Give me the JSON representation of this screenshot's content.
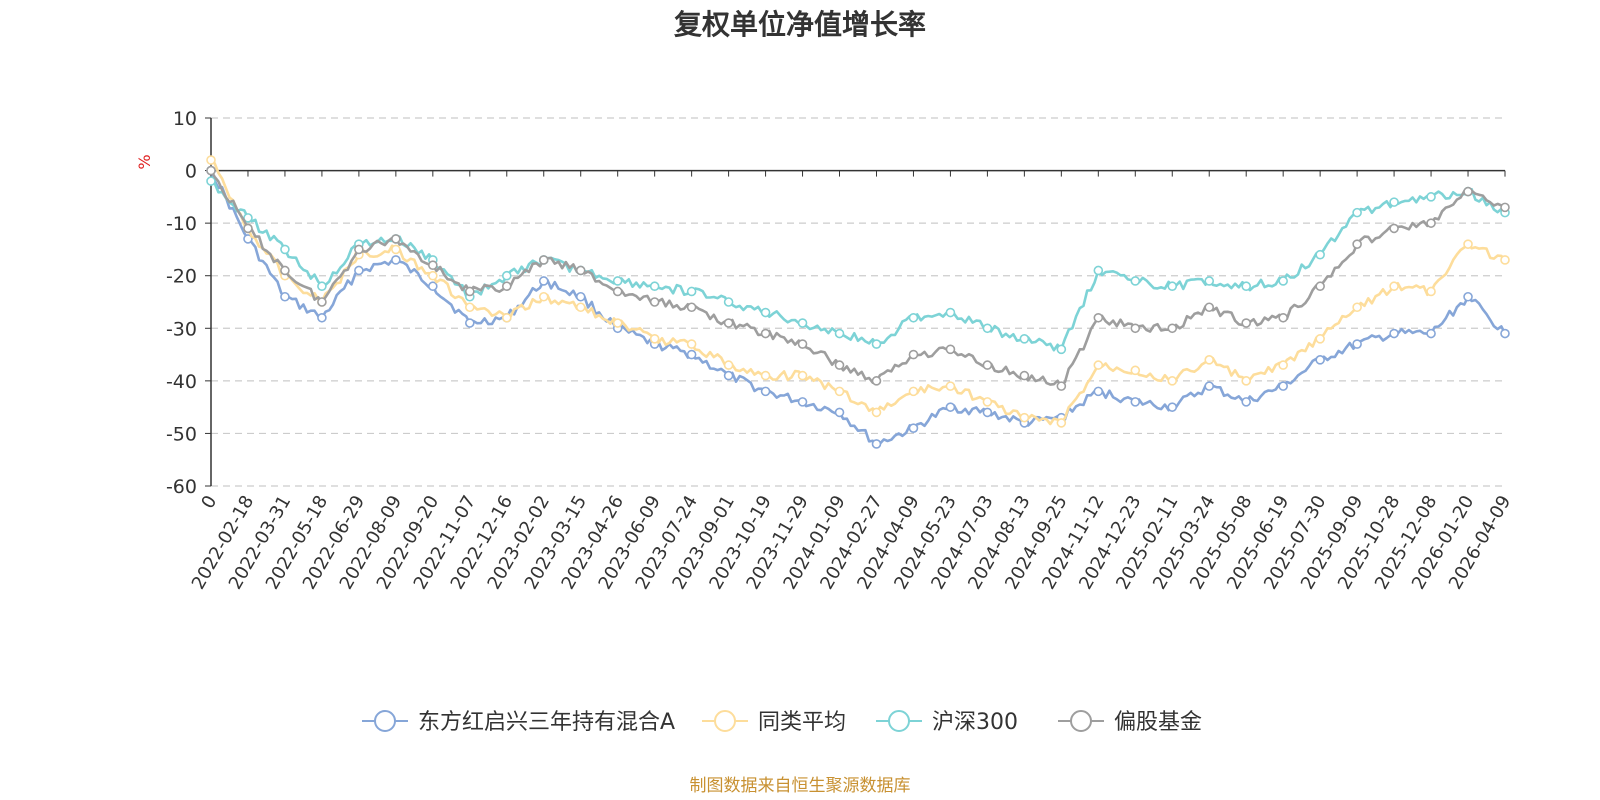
{
  "source_note": "制图数据来自恒生聚源数据库",
  "chart_data": {
    "type": "line",
    "title": "复权单位净值增长率",
    "ylabel": "%",
    "xlabel": "",
    "ylim": [
      -60,
      10
    ],
    "yticks": [
      10,
      0,
      -10,
      -20,
      -30,
      -40,
      -50,
      -60
    ],
    "grid": true,
    "legend_position": "bottom",
    "categories": [
      "0",
      "2022-02-18",
      "2022-03-31",
      "2022-05-18",
      "2022-06-29",
      "2022-08-09",
      "2022-09-20",
      "2022-11-07",
      "2022-12-16",
      "2023-02-02",
      "2023-03-15",
      "2023-04-26",
      "2023-06-09",
      "2023-07-24",
      "2023-09-01",
      "2023-10-19",
      "2023-11-29",
      "2024-01-09",
      "2024-02-27",
      "2024-04-09",
      "2024-05-23",
      "2024-07-03",
      "2024-08-13",
      "2024-09-25",
      "2024-11-12",
      "2024-12-23",
      "2025-02-11",
      "2025-03-24",
      "2025-05-08",
      "2025-06-19",
      "2025-07-30",
      "2025-09-09",
      "2025-10-28",
      "2025-12-08",
      "2026-01-20",
      "2026-04-09"
    ],
    "series": [
      {
        "name": "东方红启兴三年持有混合A",
        "color": "#86a6d8",
        "values": [
          0,
          -13,
          -24,
          -28,
          -19,
          -17,
          -22,
          -29,
          -28,
          -21,
          -24,
          -30,
          -33,
          -35,
          -39,
          -42,
          -44,
          -46,
          -52,
          -49,
          -45,
          -46,
          -48,
          -47,
          -42,
          -44,
          -45,
          -41,
          -44,
          -41,
          -36,
          -33,
          -31,
          -31,
          -24,
          -31
        ]
      },
      {
        "name": "同类平均",
        "color": "#fddd9b",
        "values": [
          2,
          -11,
          -20,
          -25,
          -16,
          -15,
          -20,
          -26,
          -28,
          -24,
          -26,
          -29,
          -32,
          -33,
          -37,
          -39,
          -39,
          -42,
          -46,
          -42,
          -41,
          -44,
          -47,
          -48,
          -37,
          -38,
          -40,
          -36,
          -40,
          -37,
          -32,
          -26,
          -22,
          -23,
          -14,
          -17
        ]
      },
      {
        "name": "沪深300",
        "color": "#7dd3d6",
        "values": [
          -2,
          -9,
          -15,
          -22,
          -14,
          -13,
          -17,
          -24,
          -20,
          -17,
          -19,
          -21,
          -22,
          -23,
          -25,
          -27,
          -29,
          -31,
          -33,
          -28,
          -27,
          -30,
          -32,
          -34,
          -19,
          -21,
          -22,
          -21,
          -22,
          -21,
          -16,
          -8,
          -6,
          -5,
          -4,
          -8
        ]
      },
      {
        "name": "偏股基金",
        "color": "#9e9e9e",
        "values": [
          0,
          -11,
          -19,
          -25,
          -15,
          -13,
          -18,
          -23,
          -22,
          -17,
          -19,
          -23,
          -25,
          -26,
          -29,
          -31,
          -33,
          -37,
          -40,
          -35,
          -34,
          -37,
          -39,
          -41,
          -28,
          -30,
          -30,
          -26,
          -29,
          -28,
          -22,
          -14,
          -11,
          -10,
          -4,
          -7
        ]
      }
    ]
  }
}
